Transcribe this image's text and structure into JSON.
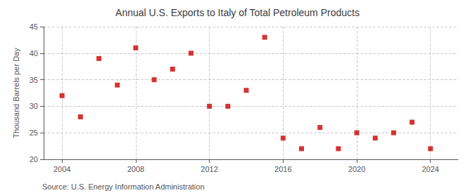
{
  "chart_data": {
    "type": "scatter",
    "title": "Annual U.S. Exports to Italy of Total Petroleum Products",
    "ylabel": "Thousand Barrels per Day",
    "annotations": [
      "Source: U.S. Energy Information Administration"
    ],
    "x": [
      2004,
      2005,
      2006,
      2007,
      2008,
      2009,
      2010,
      2011,
      2012,
      2013,
      2014,
      2015,
      2016,
      2017,
      2018,
      2019,
      2020,
      2021,
      2022,
      2023,
      2024
    ],
    "values": [
      32,
      28,
      39,
      34,
      41,
      35,
      37,
      40,
      30,
      30,
      33,
      43,
      24,
      22,
      26,
      22,
      25,
      24,
      25,
      27,
      22
    ],
    "color": "#cc0000",
    "marker": "square",
    "xlim": [
      2003,
      2025.5
    ],
    "xticks": [
      2004,
      2008,
      2012,
      2016,
      2020,
      2024
    ],
    "ylim": [
      20,
      45
    ],
    "yticks": [
      20,
      25,
      30,
      35,
      40,
      45
    ],
    "grid": true
  }
}
